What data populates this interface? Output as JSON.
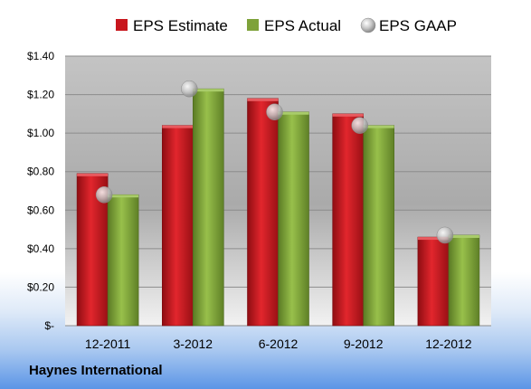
{
  "chart_data": {
    "type": "bar",
    "categories": [
      "12-2011",
      "3-2012",
      "6-2012",
      "9-2012",
      "12-2012"
    ],
    "series": [
      {
        "name": "EPS Estimate",
        "kind": "bar",
        "color": "#c8161d",
        "values": [
          0.79,
          1.04,
          1.18,
          1.1,
          0.46
        ]
      },
      {
        "name": "EPS Actual",
        "kind": "bar",
        "color": "#7ea23a",
        "values": [
          0.68,
          1.23,
          1.11,
          1.04,
          0.47
        ]
      },
      {
        "name": "EPS GAAP",
        "kind": "marker",
        "color": "#a8a8a8",
        "values": [
          0.68,
          1.23,
          1.11,
          1.04,
          0.47
        ]
      }
    ],
    "yticks": [
      "$-",
      "$0.20",
      "$0.40",
      "$0.60",
      "$0.80",
      "$1.00",
      "$1.20",
      "$1.40"
    ],
    "ylim": [
      0,
      1.4
    ],
    "grid": true,
    "legend": "top"
  },
  "footer": {
    "company": "Haynes International"
  }
}
